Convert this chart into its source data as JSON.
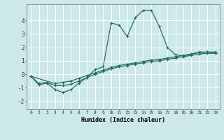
{
  "xlabel": "Humidex (Indice chaleur)",
  "background_color": "#cce8e8",
  "grid_color": "#ffffff",
  "line_color": "#1e6b5e",
  "xlim": [
    -0.5,
    23.5
  ],
  "ylim": [
    -2.6,
    5.2
  ],
  "xticks": [
    0,
    1,
    2,
    3,
    4,
    5,
    6,
    7,
    8,
    9,
    10,
    11,
    12,
    13,
    14,
    15,
    16,
    17,
    18,
    19,
    20,
    21,
    22,
    23
  ],
  "yticks": [
    -2,
    -1,
    0,
    1,
    2,
    3,
    4
  ],
  "series1_x": [
    0,
    1,
    2,
    3,
    4,
    5,
    6,
    7,
    8,
    9,
    10,
    11,
    12,
    13,
    14,
    15,
    16,
    17,
    18,
    19,
    20,
    21,
    22,
    23
  ],
  "series1_y": [
    -0.15,
    -0.8,
    -0.65,
    -1.15,
    -1.35,
    -1.15,
    -0.65,
    -0.25,
    0.35,
    0.55,
    3.8,
    3.65,
    2.8,
    4.2,
    4.75,
    4.75,
    3.55,
    2.0,
    1.45,
    1.35,
    1.5,
    1.65,
    1.65,
    1.55
  ],
  "series2_x": [
    0,
    3,
    4,
    5,
    6,
    7,
    8,
    9,
    10,
    11,
    12,
    13,
    14,
    15,
    16,
    17,
    18,
    19,
    20,
    21,
    22,
    23
  ],
  "series2_y": [
    -0.15,
    -0.7,
    -0.6,
    -0.5,
    -0.3,
    -0.1,
    0.1,
    0.3,
    0.5,
    0.65,
    0.75,
    0.85,
    0.95,
    1.05,
    1.1,
    1.2,
    1.3,
    1.4,
    1.5,
    1.6,
    1.65,
    1.65
  ],
  "series3_x": [
    0,
    1,
    2,
    3,
    4,
    5,
    6,
    7,
    8,
    9,
    10,
    11,
    12,
    13,
    14,
    15,
    16,
    17,
    18,
    19,
    20,
    21,
    22,
    23
  ],
  "series3_y": [
    -0.15,
    -0.7,
    -0.6,
    -0.85,
    -0.85,
    -0.75,
    -0.5,
    -0.25,
    0.0,
    0.2,
    0.4,
    0.55,
    0.65,
    0.75,
    0.85,
    0.95,
    1.0,
    1.1,
    1.2,
    1.3,
    1.4,
    1.5,
    1.55,
    1.55
  ]
}
